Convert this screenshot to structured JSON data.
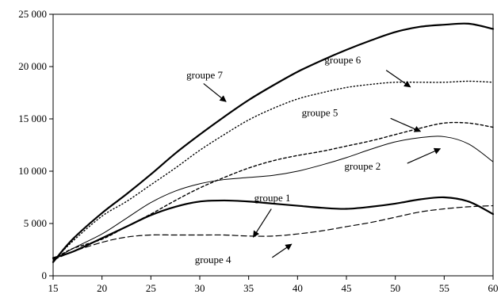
{
  "chart_data": {
    "type": "line",
    "title": "",
    "xlabel": "",
    "ylabel": "",
    "xlim": [
      15,
      60
    ],
    "ylim": [
      0,
      25000
    ],
    "xticks": [
      15,
      20,
      25,
      30,
      35,
      40,
      45,
      50,
      55,
      60
    ],
    "yticks": [
      0,
      5000,
      10000,
      15000,
      20000,
      25000
    ],
    "xtick_labels": [
      "15",
      "20",
      "25",
      "30",
      "35",
      "40",
      "45",
      "50",
      "55",
      "60"
    ],
    "ytick_labels": [
      "0",
      "5 000",
      "10 000",
      "15 000",
      "20 000",
      "25 000"
    ],
    "grid": false,
    "x": [
      15,
      17,
      20,
      22.5,
      25,
      27.5,
      30,
      32.5,
      35,
      37.5,
      40,
      42.5,
      45,
      47.5,
      50,
      52.5,
      55,
      57.5,
      60
    ],
    "series": [
      {
        "name": "groupe 7",
        "style": "solid-bold",
        "values": [
          1300,
          3500,
          6000,
          7800,
          9700,
          11700,
          13500,
          15200,
          16800,
          18200,
          19500,
          20600,
          21600,
          22500,
          23300,
          23800,
          24000,
          24100,
          23600
        ]
      },
      {
        "name": "groupe 6",
        "style": "dotted",
        "values": [
          1400,
          3300,
          5700,
          7100,
          8700,
          10300,
          12000,
          13500,
          14900,
          16000,
          16900,
          17500,
          18000,
          18300,
          18500,
          18500,
          18500,
          18600,
          18500
        ]
      },
      {
        "name": "groupe 5",
        "style": "dashed-short",
        "values": [
          1600,
          2600,
          3500,
          4700,
          5900,
          7200,
          8400,
          9400,
          10300,
          11000,
          11500,
          11900,
          12400,
          12900,
          13500,
          14100,
          14600,
          14600,
          14200
        ]
      },
      {
        "name": "groupe 2",
        "style": "solid-thin",
        "values": [
          1500,
          2600,
          4000,
          5500,
          7000,
          8100,
          8800,
          9200,
          9400,
          9600,
          10000,
          10600,
          11300,
          12100,
          12800,
          13200,
          13300,
          12600,
          10900
        ]
      },
      {
        "name": "groupe 1",
        "style": "solid-bold",
        "values": [
          1700,
          2300,
          3600,
          4700,
          5800,
          6600,
          7100,
          7200,
          7100,
          6900,
          6700,
          6500,
          6400,
          6600,
          6900,
          7300,
          7500,
          7100,
          5900
        ]
      },
      {
        "name": "groupe 4",
        "style": "dashed-long",
        "values": [
          1500,
          2300,
          3200,
          3700,
          3900,
          3900,
          3900,
          3900,
          3800,
          3800,
          4000,
          4300,
          4700,
          5100,
          5600,
          6100,
          6400,
          6600,
          6700
        ]
      }
    ],
    "annotations": [
      {
        "text": "groupe 7",
        "tx": 0.303,
        "ty": 0.245,
        "ax": 0.342,
        "ay": 0.265,
        "hx": 0.393,
        "hy": 0.334
      },
      {
        "text": "groupe 6",
        "tx": 0.617,
        "ty": 0.188,
        "ax": 0.757,
        "ay": 0.214,
        "hx": 0.812,
        "hy": 0.278
      },
      {
        "text": "groupe 5",
        "tx": 0.565,
        "ty": 0.389,
        "ax": 0.767,
        "ay": 0.398,
        "hx": 0.835,
        "hy": 0.448
      },
      {
        "text": "groupe 2",
        "tx": 0.662,
        "ty": 0.594,
        "ax": 0.805,
        "ay": 0.57,
        "hx": 0.88,
        "hy": 0.514
      },
      {
        "text": "groupe 1",
        "tx": 0.457,
        "ty": 0.715,
        "ax": 0.496,
        "ay": 0.744,
        "hx": 0.455,
        "hy": 0.852
      },
      {
        "text": "groupe 4",
        "tx": 0.322,
        "ty": 0.952,
        "ax": 0.498,
        "ay": 0.93,
        "hx": 0.542,
        "hy": 0.879
      }
    ]
  }
}
